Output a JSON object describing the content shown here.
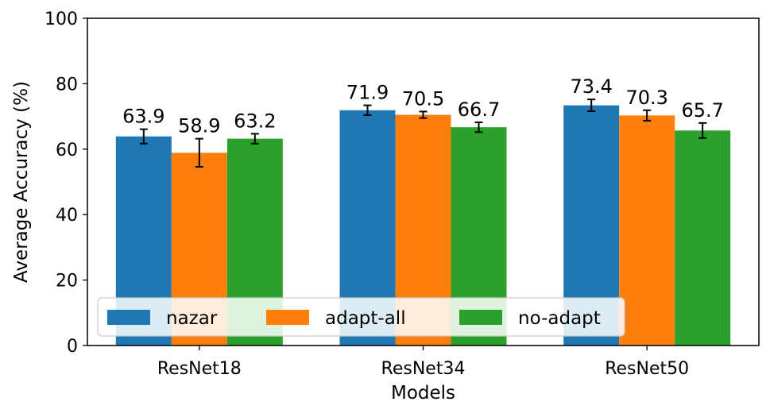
{
  "chart_data": {
    "type": "bar",
    "xlabel": "Models",
    "ylabel": "Average Accuracy (%)",
    "ylim": [
      0,
      100
    ],
    "yticks": [
      0,
      20,
      40,
      60,
      80,
      100
    ],
    "categories": [
      "ResNet18",
      "ResNet34",
      "ResNet50"
    ],
    "series": [
      {
        "name": "nazar",
        "color": "#1f77b4",
        "values": [
          63.9,
          71.9,
          73.4
        ],
        "errors": [
          2.2,
          1.5,
          1.8
        ],
        "labels": [
          "63.9",
          "71.9",
          "73.4"
        ]
      },
      {
        "name": "adapt-all",
        "color": "#ff7f0e",
        "values": [
          58.9,
          70.5,
          70.3
        ],
        "errors": [
          4.3,
          1.0,
          1.6
        ],
        "labels": [
          "58.9",
          "70.5",
          "70.3"
        ]
      },
      {
        "name": "no-adapt",
        "color": "#2ca02c",
        "values": [
          63.2,
          66.7,
          65.7
        ],
        "errors": [
          1.5,
          1.5,
          2.3
        ],
        "labels": [
          "63.2",
          "66.7",
          "65.7"
        ]
      }
    ],
    "grid": false,
    "legend": {
      "placement": "lower-left",
      "columns": 3
    }
  }
}
